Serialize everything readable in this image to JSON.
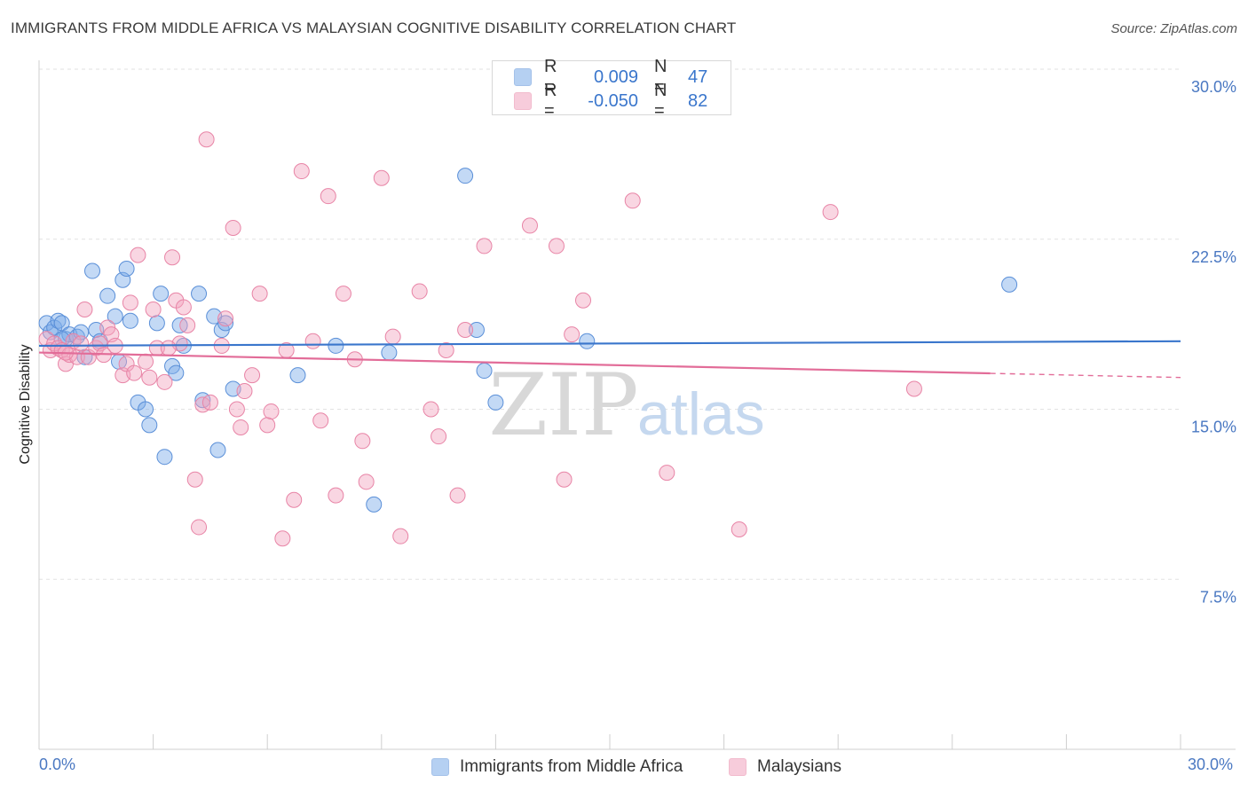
{
  "header": {
    "title": "IMMIGRANTS FROM MIDDLE AFRICA VS MALAYSIAN COGNITIVE DISABILITY CORRELATION CHART",
    "source": "Source: ZipAtlas.com"
  },
  "watermark": {
    "zip": "ZIP",
    "atlas": "atlas"
  },
  "legend": {
    "r_label": "R =",
    "n_label": "N =",
    "items": [
      {
        "name": "Immigrants from Middle Africa",
        "r": "0.009",
        "n": "47",
        "color": "#7aaae8"
      },
      {
        "name": "Malaysians",
        "r": "-0.050",
        "n": "82",
        "color": "#f2a3be"
      }
    ]
  },
  "chart_data": {
    "type": "scatter",
    "xlabel": "",
    "ylabel": "Cognitive Disability",
    "xlim": [
      0,
      30
    ],
    "ylim": [
      0,
      30
    ],
    "x_tick_labels": [
      "0.0%",
      "30.0%"
    ],
    "y_ticks": [
      {
        "value": 7.5,
        "label": "7.5%"
      },
      {
        "value": 15.0,
        "label": "15.0%"
      },
      {
        "value": 22.5,
        "label": "22.5%"
      },
      {
        "value": 30.0,
        "label": "30.0%"
      }
    ],
    "grid": true,
    "legend_position": "top-center",
    "series": [
      {
        "name": "Immigrants from Middle Africa",
        "color": "#7aaae8",
        "stroke": "#5a8fd8",
        "trend": {
          "x0": 0.0,
          "y0": 17.8,
          "x1": 30.0,
          "y1": 18.0,
          "solid_to": 30.0,
          "color": "#3a76cc"
        },
        "points": [
          [
            0.2,
            18.8
          ],
          [
            0.3,
            18.4
          ],
          [
            0.4,
            18.6
          ],
          [
            0.5,
            18.9
          ],
          [
            0.6,
            18.8
          ],
          [
            0.7,
            18.1
          ],
          [
            0.8,
            18.3
          ],
          [
            1.0,
            18.2
          ],
          [
            1.1,
            18.4
          ],
          [
            1.2,
            17.3
          ],
          [
            1.4,
            21.1
          ],
          [
            1.5,
            18.5
          ],
          [
            1.6,
            18.0
          ],
          [
            1.8,
            20.0
          ],
          [
            2.0,
            19.1
          ],
          [
            2.1,
            17.1
          ],
          [
            2.2,
            20.7
          ],
          [
            2.3,
            21.2
          ],
          [
            2.4,
            18.9
          ],
          [
            2.6,
            15.3
          ],
          [
            2.8,
            15.0
          ],
          [
            2.9,
            14.3
          ],
          [
            3.1,
            18.8
          ],
          [
            3.2,
            20.1
          ],
          [
            3.3,
            12.9
          ],
          [
            3.5,
            16.9
          ],
          [
            3.6,
            16.6
          ],
          [
            3.7,
            18.7
          ],
          [
            3.8,
            17.8
          ],
          [
            4.2,
            20.1
          ],
          [
            4.3,
            15.4
          ],
          [
            4.6,
            19.1
          ],
          [
            4.7,
            13.2
          ],
          [
            4.8,
            18.5
          ],
          [
            4.9,
            18.8
          ],
          [
            5.1,
            15.9
          ],
          [
            6.8,
            16.5
          ],
          [
            7.8,
            17.8
          ],
          [
            8.8,
            10.8
          ],
          [
            9.2,
            17.5
          ],
          [
            11.2,
            25.3
          ],
          [
            11.5,
            18.5
          ],
          [
            11.7,
            16.7
          ],
          [
            12.0,
            15.3
          ],
          [
            14.4,
            18.0
          ],
          [
            25.5,
            20.5
          ],
          [
            0.6,
            18.1
          ]
        ]
      },
      {
        "name": "Malaysians",
        "color": "#f2a3be",
        "stroke": "#e884a6",
        "trend": {
          "x0": 0.0,
          "y0": 17.5,
          "x1": 30.0,
          "y1": 16.4,
          "solid_to": 25.0,
          "color": "#e26c98"
        },
        "points": [
          [
            0.2,
            18.1
          ],
          [
            0.3,
            17.6
          ],
          [
            0.4,
            17.9
          ],
          [
            0.5,
            17.7
          ],
          [
            0.6,
            17.6
          ],
          [
            0.7,
            17.0
          ],
          [
            0.8,
            17.4
          ],
          [
            0.9,
            18.0
          ],
          [
            1.0,
            17.3
          ],
          [
            1.1,
            17.9
          ],
          [
            1.2,
            19.4
          ],
          [
            1.3,
            17.3
          ],
          [
            1.5,
            17.7
          ],
          [
            1.6,
            17.9
          ],
          [
            1.8,
            18.6
          ],
          [
            1.9,
            18.3
          ],
          [
            2.0,
            17.8
          ],
          [
            2.2,
            16.5
          ],
          [
            2.4,
            19.7
          ],
          [
            2.6,
            21.8
          ],
          [
            2.8,
            17.1
          ],
          [
            2.9,
            16.4
          ],
          [
            3.0,
            19.4
          ],
          [
            3.1,
            17.7
          ],
          [
            3.3,
            16.2
          ],
          [
            3.5,
            21.7
          ],
          [
            3.6,
            19.8
          ],
          [
            3.8,
            19.5
          ],
          [
            3.9,
            18.7
          ],
          [
            3.7,
            17.9
          ],
          [
            4.1,
            11.9
          ],
          [
            4.2,
            9.8
          ],
          [
            4.3,
            15.2
          ],
          [
            4.4,
            26.9
          ],
          [
            4.5,
            15.3
          ],
          [
            4.8,
            17.8
          ],
          [
            4.9,
            19.0
          ],
          [
            5.1,
            23.0
          ],
          [
            5.2,
            15.0
          ],
          [
            5.3,
            14.2
          ],
          [
            5.4,
            15.8
          ],
          [
            5.6,
            16.5
          ],
          [
            5.8,
            20.1
          ],
          [
            6.0,
            14.3
          ],
          [
            6.1,
            14.9
          ],
          [
            6.4,
            9.3
          ],
          [
            6.7,
            11.0
          ],
          [
            6.9,
            25.5
          ],
          [
            7.2,
            18.0
          ],
          [
            7.4,
            14.5
          ],
          [
            7.6,
            24.4
          ],
          [
            7.8,
            11.2
          ],
          [
            8.0,
            20.1
          ],
          [
            8.3,
            17.2
          ],
          [
            8.5,
            13.6
          ],
          [
            8.6,
            11.8
          ],
          [
            9.0,
            25.2
          ],
          [
            9.3,
            18.2
          ],
          [
            9.5,
            9.4
          ],
          [
            10.0,
            20.2
          ],
          [
            10.3,
            15.0
          ],
          [
            10.5,
            13.8
          ],
          [
            10.7,
            17.6
          ],
          [
            11.0,
            11.2
          ],
          [
            11.2,
            18.5
          ],
          [
            11.7,
            22.2
          ],
          [
            12.9,
            23.1
          ],
          [
            13.6,
            22.2
          ],
          [
            13.8,
            11.9
          ],
          [
            14.0,
            18.3
          ],
          [
            14.3,
            19.8
          ],
          [
            15.6,
            24.2
          ],
          [
            16.5,
            12.2
          ],
          [
            18.4,
            9.7
          ],
          [
            20.8,
            23.7
          ],
          [
            23.0,
            15.9
          ],
          [
            2.3,
            17.0
          ],
          [
            1.7,
            17.4
          ],
          [
            0.7,
            17.5
          ],
          [
            3.4,
            17.7
          ],
          [
            2.5,
            16.6
          ],
          [
            6.5,
            17.6
          ]
        ]
      }
    ]
  }
}
